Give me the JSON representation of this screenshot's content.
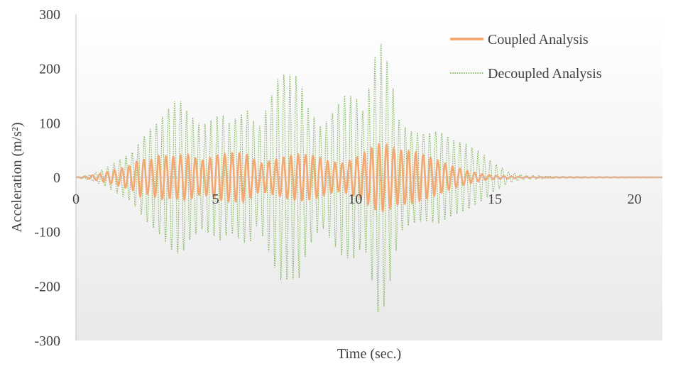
{
  "chart_data": {
    "type": "line",
    "xlabel": "Time (sec.)",
    "ylabel": "Acceleration (m/s²)",
    "xlim": [
      0,
      21
    ],
    "ylim": [
      -300,
      300
    ],
    "x_ticks": [
      0,
      5,
      10,
      15,
      20
    ],
    "y_ticks": [
      300,
      200,
      100,
      0,
      -100,
      -200,
      -300
    ],
    "grid": false,
    "legend_position": "top-right",
    "colors": {
      "coupled": "#f4a46a",
      "decoupled": "#70ad47"
    },
    "series": [
      {
        "name": "Coupled Analysis",
        "style": "solid",
        "envelope_time": [
          0,
          0.5,
          1.0,
          1.5,
          2.0,
          2.3,
          2.6,
          3.0,
          3.5,
          4.0,
          4.5,
          5.0,
          5.5,
          6.0,
          6.3,
          6.6,
          7.0,
          7.5,
          8.0,
          8.5,
          9.0,
          9.5,
          10.0,
          10.5,
          10.8,
          11.0,
          11.5,
          12.0,
          12.5,
          13.0,
          13.5,
          14.0,
          14.5,
          15.0,
          15.5,
          16.0,
          17.0,
          21.0
        ],
        "envelope_amplitude": [
          0,
          3,
          8,
          15,
          22,
          35,
          30,
          40,
          38,
          42,
          30,
          40,
          44,
          45,
          35,
          25,
          30,
          38,
          42,
          40,
          30,
          25,
          35,
          50,
          62,
          62,
          50,
          48,
          40,
          30,
          20,
          12,
          6,
          3,
          2,
          1,
          0.5,
          0
        ]
      },
      {
        "name": "Decoupled Analysis",
        "style": "dotted",
        "envelope_time": [
          0,
          0.5,
          1.0,
          1.5,
          2.0,
          2.5,
          3.0,
          3.5,
          3.8,
          4.0,
          4.5,
          5.0,
          5.2,
          5.5,
          6.0,
          6.2,
          6.5,
          7.0,
          7.3,
          7.6,
          8.0,
          8.3,
          8.8,
          9.2,
          9.6,
          10.0,
          10.3,
          10.6,
          10.8,
          11.0,
          11.3,
          11.6,
          12.0,
          12.5,
          13.0,
          13.5,
          14.0,
          14.5,
          15.0,
          15.5,
          16.0,
          17.0,
          18.0,
          21.0
        ],
        "envelope_amplitude": [
          0,
          5,
          15,
          30,
          45,
          80,
          105,
          140,
          140,
          120,
          95,
          110,
          118,
          100,
          120,
          125,
          85,
          150,
          190,
          190,
          185,
          130,
          90,
          120,
          150,
          150,
          120,
          190,
          250,
          245,
          180,
          100,
          85,
          80,
          85,
          70,
          60,
          45,
          25,
          10,
          4,
          2,
          1,
          0
        ]
      }
    ]
  }
}
